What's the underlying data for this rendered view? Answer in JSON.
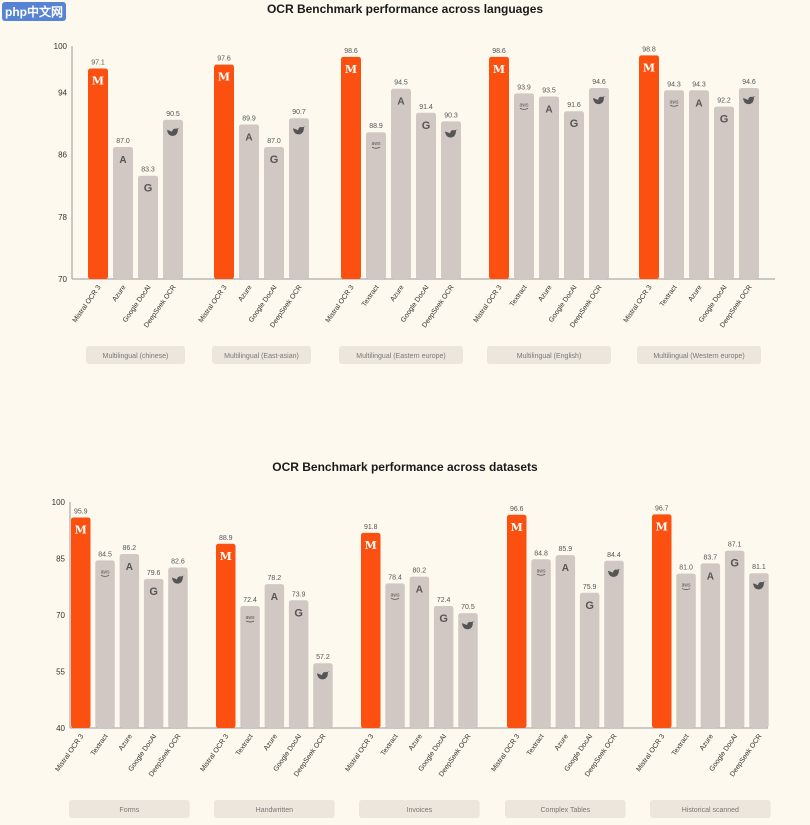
{
  "watermark": "php中文网",
  "colors": {
    "highlight": "#fc5010",
    "other": "#d1c8c3",
    "background": "#fdf9ee",
    "category_box": "#ede6dc"
  },
  "chart_data": [
    {
      "type": "bar",
      "title": "OCR Benchmark performance across languages",
      "ylim": [
        70,
        100
      ],
      "yticks": [
        70,
        78,
        86,
        94,
        100
      ],
      "grid": false,
      "groups": [
        {
          "category": "Multilingual (chinese)",
          "bars": [
            {
              "model": "Mistral OCR 3",
              "value": 97.1,
              "icon": "mistral-icon"
            },
            {
              "model": "Azure",
              "value": 87.0,
              "icon": "azure-icon"
            },
            {
              "model": "Google DocAI",
              "value": 83.3,
              "icon": "google-icon"
            },
            {
              "model": "DeepSeek OCR",
              "value": 90.5,
              "icon": "deepseek-icon"
            }
          ]
        },
        {
          "category": "Multilingual (East-asian)",
          "bars": [
            {
              "model": "Mistral OCR 3",
              "value": 97.6,
              "icon": "mistral-icon"
            },
            {
              "model": "Azure",
              "value": 89.9,
              "icon": "azure-icon"
            },
            {
              "model": "Google DocAI",
              "value": 87.0,
              "icon": "google-icon"
            },
            {
              "model": "DeepSeek OCR",
              "value": 90.7,
              "icon": "deepseek-icon"
            }
          ]
        },
        {
          "category": "Multilingual (Eastern europe)",
          "bars": [
            {
              "model": "Mistral OCR 3",
              "value": 98.6,
              "icon": "mistral-icon"
            },
            {
              "model": "Textract",
              "value": 88.9,
              "icon": "aws-icon"
            },
            {
              "model": "Azure",
              "value": 94.5,
              "icon": "azure-icon"
            },
            {
              "model": "Google DocAI",
              "value": 91.4,
              "icon": "google-icon"
            },
            {
              "model": "DeepSeek OCR",
              "value": 90.3,
              "icon": "deepseek-icon"
            }
          ]
        },
        {
          "category": "Multilingual (English)",
          "bars": [
            {
              "model": "Mistral OCR 3",
              "value": 98.6,
              "icon": "mistral-icon"
            },
            {
              "model": "Textract",
              "value": 93.9,
              "icon": "aws-icon"
            },
            {
              "model": "Azure",
              "value": 93.5,
              "icon": "azure-icon"
            },
            {
              "model": "Google DocAI",
              "value": 91.6,
              "icon": "google-icon"
            },
            {
              "model": "DeepSeek OCR",
              "value": 94.6,
              "icon": "deepseek-icon"
            }
          ]
        },
        {
          "category": "Multilingual (Western europe)",
          "bars": [
            {
              "model": "Mistral OCR 3",
              "value": 98.8,
              "icon": "mistral-icon"
            },
            {
              "model": "Textract",
              "value": 94.3,
              "icon": "aws-icon"
            },
            {
              "model": "Azure",
              "value": 94.3,
              "icon": "azure-icon"
            },
            {
              "model": "Google DocAI",
              "value": 92.2,
              "icon": "google-icon"
            },
            {
              "model": "DeepSeek OCR",
              "value": 94.6,
              "icon": "deepseek-icon"
            }
          ]
        }
      ]
    },
    {
      "type": "bar",
      "title": "OCR Benchmark performance across datasets",
      "ylim": [
        40,
        100
      ],
      "yticks": [
        40,
        55,
        70,
        85,
        100
      ],
      "grid": false,
      "groups": [
        {
          "category": "Forms",
          "bars": [
            {
              "model": "Mistral OCR 3",
              "value": 95.9,
              "icon": "mistral-icon"
            },
            {
              "model": "Textract",
              "value": 84.5,
              "icon": "aws-icon"
            },
            {
              "model": "Azure",
              "value": 86.2,
              "icon": "azure-icon"
            },
            {
              "model": "Google DocAI",
              "value": 79.6,
              "icon": "google-icon"
            },
            {
              "model": "DeepSeek OCR",
              "value": 82.6,
              "icon": "deepseek-icon"
            }
          ]
        },
        {
          "category": "Handwritten",
          "bars": [
            {
              "model": "Mistral OCR 3",
              "value": 88.9,
              "icon": "mistral-icon"
            },
            {
              "model": "Textract",
              "value": 72.4,
              "icon": "aws-icon"
            },
            {
              "model": "Azure",
              "value": 78.2,
              "icon": "azure-icon"
            },
            {
              "model": "Google DocAI",
              "value": 73.9,
              "icon": "google-icon"
            },
            {
              "model": "DeepSeek OCR",
              "value": 57.2,
              "icon": "deepseek-icon"
            }
          ]
        },
        {
          "category": "Invoices",
          "bars": [
            {
              "model": "Mistral OCR 3",
              "value": 91.8,
              "icon": "mistral-icon"
            },
            {
              "model": "Textract",
              "value": 78.4,
              "icon": "aws-icon"
            },
            {
              "model": "Azure",
              "value": 80.2,
              "icon": "azure-icon"
            },
            {
              "model": "Google DocAI",
              "value": 72.4,
              "icon": "google-icon"
            },
            {
              "model": "DeepSeek OCR",
              "value": 70.5,
              "icon": "deepseek-icon"
            }
          ]
        },
        {
          "category": "Complex Tables",
          "bars": [
            {
              "model": "Mistral OCR 3",
              "value": 96.6,
              "icon": "mistral-icon"
            },
            {
              "model": "Textract",
              "value": 84.8,
              "icon": "aws-icon"
            },
            {
              "model": "Azure",
              "value": 85.9,
              "icon": "azure-icon"
            },
            {
              "model": "Google DocAI",
              "value": 75.9,
              "icon": "google-icon"
            },
            {
              "model": "DeepSeek OCR",
              "value": 84.4,
              "icon": "deepseek-icon"
            }
          ]
        },
        {
          "category": "Historical scanned",
          "bars": [
            {
              "model": "Mistral OCR 3",
              "value": 96.7,
              "icon": "mistral-icon"
            },
            {
              "model": "Textract",
              "value": 81.0,
              "icon": "aws-icon"
            },
            {
              "model": "Azure",
              "value": 83.7,
              "icon": "azure-icon"
            },
            {
              "model": "Google DocAI",
              "value": 87.1,
              "icon": "google-icon"
            },
            {
              "model": "DeepSeek OCR",
              "value": 81.1,
              "icon": "deepseek-icon"
            }
          ]
        }
      ]
    }
  ]
}
